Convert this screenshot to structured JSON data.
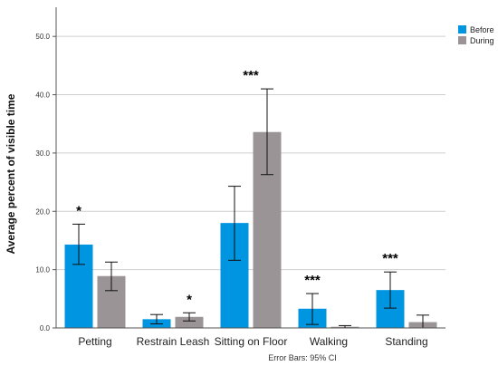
{
  "chart_data": {
    "type": "bar",
    "categories": [
      "Petting",
      "Restrain Leash",
      "Sitting on Floor",
      "Walking",
      "Standing"
    ],
    "series": [
      {
        "name": "Before",
        "color": "#0095e0",
        "values": [
          14.3,
          1.5,
          18.0,
          3.3,
          6.5
        ],
        "ci_low": [
          10.9,
          0.7,
          11.6,
          0.6,
          3.4
        ],
        "ci_high": [
          17.8,
          2.3,
          24.3,
          5.9,
          9.6
        ]
      },
      {
        "name": "During",
        "color": "#9a9496",
        "values": [
          8.9,
          1.9,
          33.6,
          0.2,
          1.0
        ],
        "ci_low": [
          6.4,
          1.2,
          26.3,
          0.0,
          0.0
        ],
        "ci_high": [
          11.3,
          2.6,
          41.0,
          0.4,
          2.2
        ]
      }
    ],
    "significance": [
      "*",
      "*",
      "***",
      "***",
      "***"
    ],
    "ylabel": "Average percent of visible time",
    "xlabel": "",
    "ylim": [
      0,
      55
    ],
    "yticks": [
      "0.0",
      "10.0",
      "20.0",
      "30.0",
      "40.0",
      "50.0"
    ],
    "grid": true,
    "legend_position": "top-right",
    "footnote": "Error Bars: 95% CI"
  }
}
